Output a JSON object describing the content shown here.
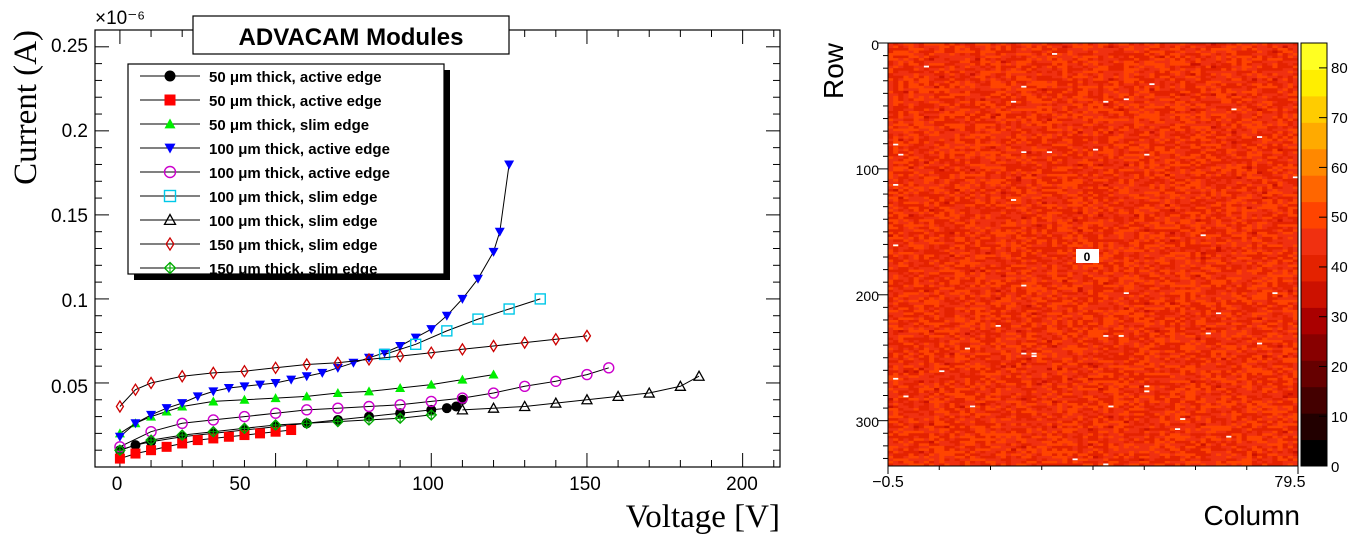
{
  "chart_data": [
    {
      "type": "line",
      "title": "ADVACAM Modules",
      "xlabel": "Voltage [V]",
      "ylabel": "Current (A)",
      "y_multiplier": "×10⁻⁶",
      "xlim": [
        -8,
        212
      ],
      "ylim": [
        0,
        0.26
      ],
      "xticks": [
        0,
        50,
        100,
        150,
        200
      ],
      "xtick_labels": [
        "0",
        "50",
        "100",
        "150",
        "200"
      ],
      "yticks": [
        0.05,
        0.1,
        0.15,
        0.2,
        0.25
      ],
      "ytick_labels": [
        "0.05",
        "0.1",
        "0.15",
        "0.2",
        "0.25"
      ],
      "legend_position": "top-left",
      "series": [
        {
          "name": "50 μm thick, active edge",
          "marker": "circle-filled",
          "color": "#000000",
          "x": [
            0,
            5,
            10,
            20,
            30,
            40,
            50,
            60,
            70,
            80,
            90,
            100,
            105,
            108,
            110
          ],
          "y": [
            0.01,
            0.013,
            0.015,
            0.018,
            0.02,
            0.022,
            0.024,
            0.026,
            0.028,
            0.03,
            0.032,
            0.034,
            0.035,
            0.036,
            0.04
          ]
        },
        {
          "name": "50  μm thick, active  edge",
          "marker": "square-filled",
          "color": "#ff0000",
          "x": [
            0,
            5,
            10,
            15,
            20,
            25,
            30,
            35,
            40,
            45,
            50,
            55
          ],
          "y": [
            0.005,
            0.008,
            0.01,
            0.012,
            0.014,
            0.016,
            0.017,
            0.018,
            0.019,
            0.02,
            0.021,
            0.022
          ]
        },
        {
          "name": "50  μm thick, slim edge",
          "marker": "triangle-up-filled",
          "color": "#00ee00",
          "x": [
            0,
            5,
            10,
            15,
            20,
            30,
            40,
            50,
            60,
            70,
            80,
            90,
            100,
            110,
            120
          ],
          "y": [
            0.02,
            0.026,
            0.03,
            0.033,
            0.036,
            0.039,
            0.04,
            0.041,
            0.042,
            0.044,
            0.045,
            0.047,
            0.049,
            0.052,
            0.055
          ]
        },
        {
          "name": "100  μm thick, active edge",
          "marker": "triangle-down-filled",
          "color": "#0000ff",
          "x": [
            0,
            5,
            10,
            15,
            20,
            25,
            30,
            35,
            40,
            45,
            50,
            55,
            60,
            65,
            70,
            75,
            80,
            85,
            90,
            95,
            100,
            105,
            110,
            115,
            120,
            122,
            125
          ],
          "y": [
            0.018,
            0.026,
            0.031,
            0.035,
            0.038,
            0.042,
            0.045,
            0.047,
            0.048,
            0.049,
            0.05,
            0.052,
            0.054,
            0.056,
            0.059,
            0.062,
            0.065,
            0.068,
            0.072,
            0.077,
            0.082,
            0.09,
            0.1,
            0.112,
            0.128,
            0.14,
            0.18
          ]
        },
        {
          "name": "100  μm thick, active edge",
          "marker": "circle-open",
          "color": "#cc00cc",
          "x": [
            0,
            10,
            20,
            30,
            40,
            50,
            60,
            70,
            80,
            90,
            100,
            110,
            120,
            130,
            140,
            150,
            157
          ],
          "y": [
            0.012,
            0.021,
            0.026,
            0.028,
            0.03,
            0.032,
            0.034,
            0.035,
            0.036,
            0.037,
            0.039,
            0.041,
            0.044,
            0.048,
            0.051,
            0.055,
            0.059
          ]
        },
        {
          "name": "100  μm thick, slim edge",
          "marker": "square-open",
          "color": "#00c8e8",
          "x": [
            85,
            95,
            105,
            115,
            125,
            135
          ],
          "y": [
            0.067,
            0.073,
            0.081,
            0.088,
            0.094,
            0.1
          ]
        },
        {
          "name": "100  μm thick, slim edge",
          "marker": "triangle-up-open",
          "color": "#000000",
          "x": [
            110,
            120,
            130,
            140,
            150,
            160,
            170,
            180,
            186
          ],
          "y": [
            0.034,
            0.035,
            0.036,
            0.038,
            0.04,
            0.042,
            0.044,
            0.048,
            0.054
          ]
        },
        {
          "name": "150  μm thick, slim edge",
          "marker": "diamond-open",
          "color": "#cc0000",
          "x": [
            0,
            5,
            10,
            20,
            30,
            40,
            50,
            60,
            70,
            80,
            90,
            100,
            110,
            120,
            130,
            140,
            150
          ],
          "y": [
            0.036,
            0.046,
            0.05,
            0.054,
            0.056,
            0.057,
            0.059,
            0.061,
            0.062,
            0.064,
            0.066,
            0.068,
            0.07,
            0.072,
            0.074,
            0.076,
            0.078
          ]
        },
        {
          "name": "150  μm thick, slim edge",
          "marker": "diamond-cross",
          "color": "#00aa00",
          "x": [
            0,
            10,
            20,
            30,
            40,
            50,
            60,
            70,
            80,
            90,
            100
          ],
          "y": [
            0.01,
            0.016,
            0.019,
            0.021,
            0.023,
            0.025,
            0.026,
            0.027,
            0.028,
            0.029,
            0.031
          ]
        }
      ]
    },
    {
      "type": "heatmap",
      "xlabel": "Column",
      "ylabel": "Row",
      "xtick_labels": [
        "−0.5",
        "79.5"
      ],
      "yticks": [
        0,
        100,
        200,
        300
      ],
      "ytick_labels": [
        "0",
        "100",
        "200",
        "300"
      ],
      "rows": 336,
      "columns": 80,
      "value_range": [
        0,
        85
      ],
      "typical_value": 45,
      "colorbar_ticks": [
        0,
        10,
        20,
        30,
        40,
        50,
        60,
        70,
        80
      ],
      "colorbar_labels": [
        "0",
        "10",
        "20",
        "30",
        "40",
        "50",
        "60",
        "70",
        "80"
      ],
      "annotation": "0",
      "colormap": [
        "#000000",
        "#220000",
        "#440000",
        "#660000",
        "#880000",
        "#aa0000",
        "#cc1100",
        "#e42200",
        "#f03010",
        "#ff4400",
        "#ff6600",
        "#ff8800",
        "#ffaa00",
        "#ffcc00",
        "#ffee00",
        "#ffff22"
      ]
    }
  ]
}
